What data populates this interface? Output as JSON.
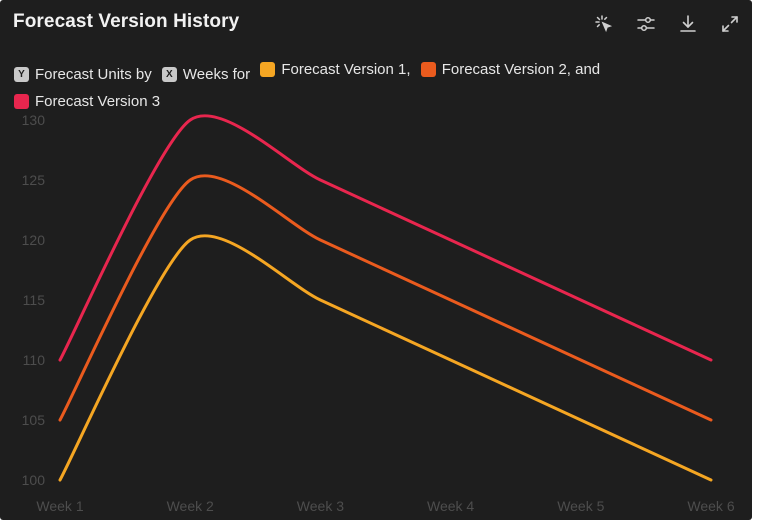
{
  "header": {
    "title": "Forecast Version History",
    "tools": [
      {
        "name": "select-tool-icon"
      },
      {
        "name": "filter-settings-icon"
      },
      {
        "name": "download-icon"
      },
      {
        "name": "expand-icon"
      }
    ]
  },
  "legend": {
    "y_badge": "Y",
    "y_label": "Forecast Units by",
    "x_badge": "X",
    "x_label": "Weeks for",
    "items": [
      {
        "label": "Forecast Version 1,",
        "color": "#f5a623"
      },
      {
        "label": "Forecast Version 2, and",
        "color": "#ea5b1e"
      },
      {
        "label": "Forecast Version 3",
        "color": "#e8264e"
      }
    ]
  },
  "chart_data": {
    "type": "line",
    "title": "Forecast Version History",
    "categories": [
      "Week 1",
      "Week 2",
      "Week 3",
      "Week 4",
      "Week 5",
      "Week 6"
    ],
    "ylim": [
      100,
      130
    ],
    "yticks": [
      100,
      105,
      110,
      115,
      120,
      125,
      130
    ],
    "grid": false,
    "legend_position": "top",
    "series": [
      {
        "name": "Forecast Version 1",
        "color": "#f5a623",
        "values": [
          100,
          120,
          115,
          110,
          105,
          100
        ]
      },
      {
        "name": "Forecast Version 2",
        "color": "#ea5b1e",
        "values": [
          105,
          125,
          120,
          115,
          110,
          105
        ]
      },
      {
        "name": "Forecast Version 3",
        "color": "#e8264e",
        "values": [
          110,
          130,
          125,
          120,
          115,
          110
        ]
      }
    ]
  }
}
